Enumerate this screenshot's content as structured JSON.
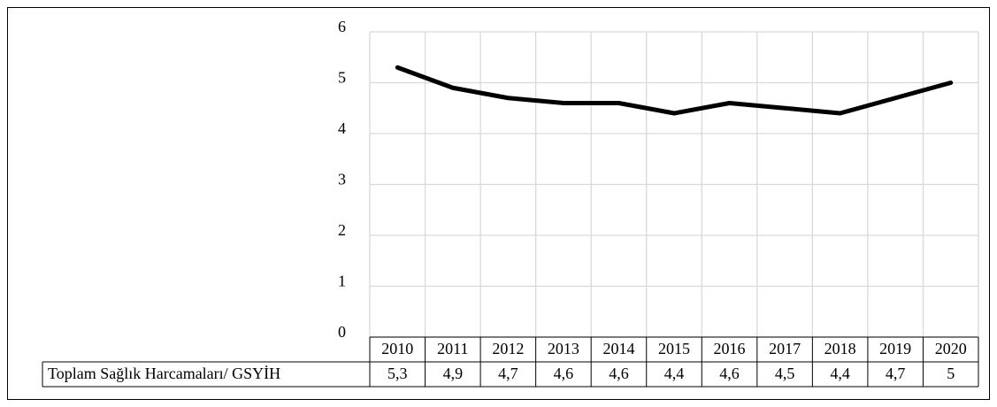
{
  "chart_data": {
    "type": "line",
    "categories": [
      "2010",
      "2011",
      "2012",
      "2013",
      "2014",
      "2015",
      "2016",
      "2017",
      "2018",
      "2019",
      "2020"
    ],
    "series": [
      {
        "name": "Toplam Sağlık Harcamaları/ GSYİH",
        "color": "#000000",
        "values": [
          5.3,
          4.9,
          4.7,
          4.6,
          4.6,
          4.4,
          4.6,
          4.5,
          4.4,
          4.7,
          5
        ],
        "value_labels": [
          "5,3",
          "4,9",
          "4,7",
          "4,6",
          "4,6",
          "4,4",
          "4,6",
          "4,5",
          "4,4",
          "4,7",
          "5"
        ]
      }
    ],
    "ylim": [
      0,
      6
    ],
    "yticks": [
      0,
      1,
      2,
      3,
      4,
      5,
      6
    ],
    "grid": true
  }
}
